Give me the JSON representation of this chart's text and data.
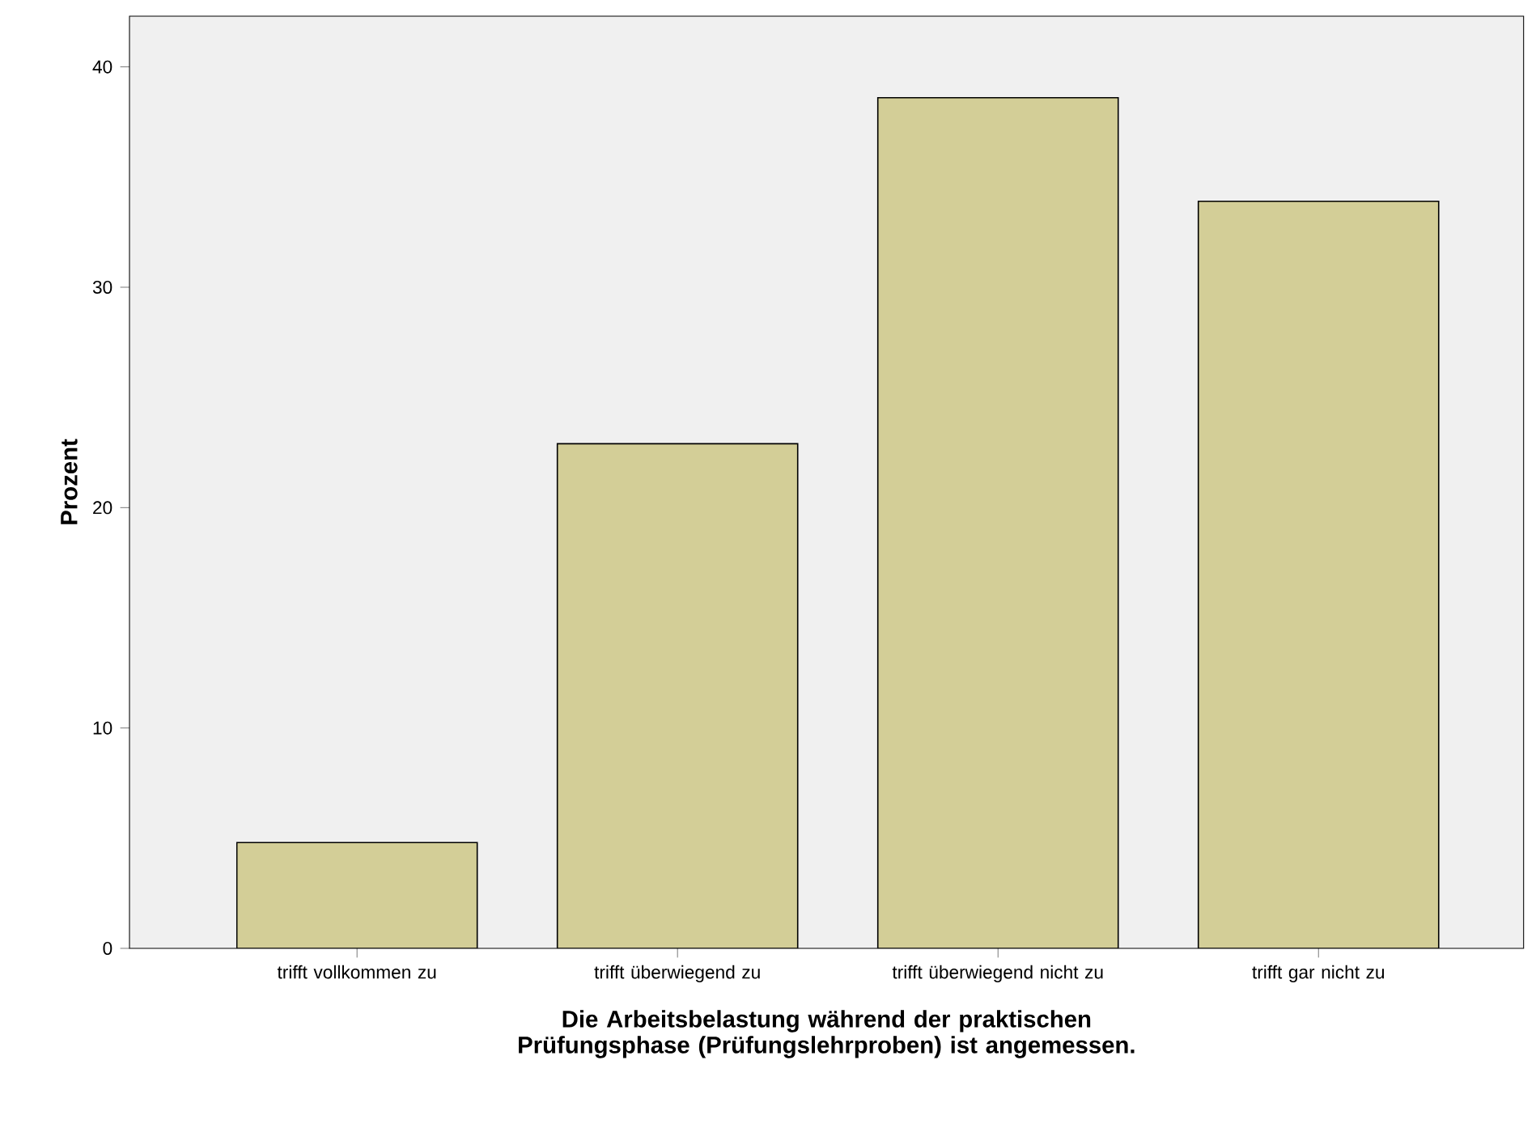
{
  "chart_data": {
    "type": "bar",
    "categories": [
      "trifft vollkommen zu",
      "trifft überwiegend zu",
      "trifft überwiegend nicht zu",
      "trifft gar nicht zu"
    ],
    "values": [
      4.8,
      22.9,
      38.6,
      33.9
    ],
    "color": "#d3ce97",
    "ylim": [
      0,
      42.3
    ],
    "yticks": [
      0,
      10,
      20,
      30,
      40
    ],
    "xlabel": "Die Arbeitsbelastung während der praktischen Prüfungsphase (Prüfungslehrproben) ist angemessen.",
    "ylabel": "Prozent",
    "grid": false
  }
}
